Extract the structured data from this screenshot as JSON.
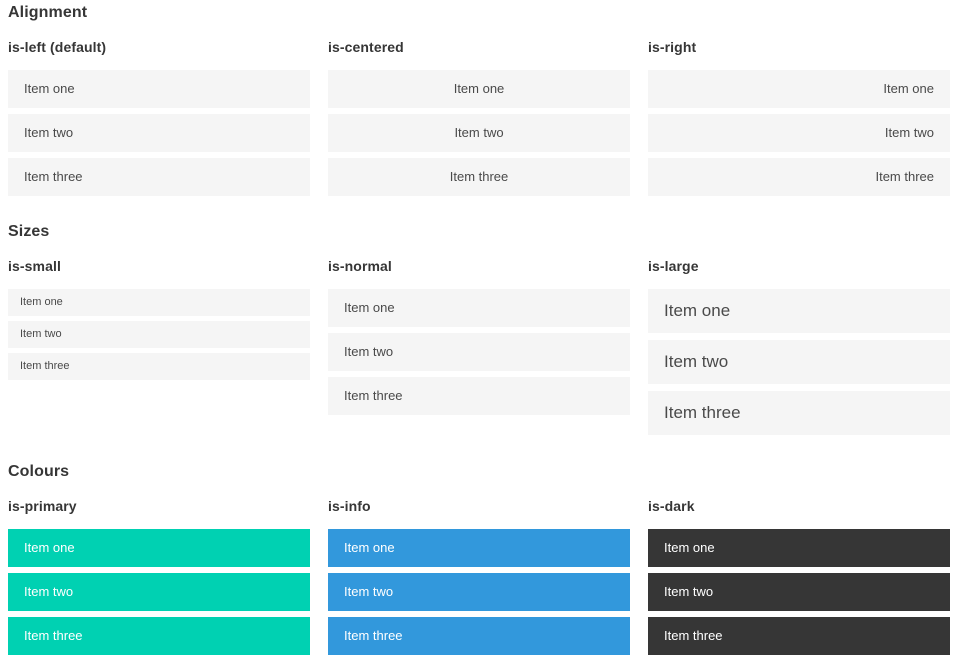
{
  "sections": [
    {
      "title": "Alignment",
      "columns": [
        {
          "subtitle": "is-left (default)",
          "modifier": "left",
          "items": [
            "Item one",
            "Item two",
            "Item three"
          ]
        },
        {
          "subtitle": "is-centered",
          "modifier": "centered",
          "items": [
            "Item one",
            "Item two",
            "Item three"
          ]
        },
        {
          "subtitle": "is-right",
          "modifier": "right",
          "items": [
            "Item one",
            "Item two",
            "Item three"
          ]
        }
      ]
    },
    {
      "title": "Sizes",
      "columns": [
        {
          "subtitle": "is-small",
          "modifier": "small",
          "items": [
            "Item one",
            "Item two",
            "Item three"
          ]
        },
        {
          "subtitle": "is-normal",
          "modifier": "normal",
          "items": [
            "Item one",
            "Item two",
            "Item three"
          ]
        },
        {
          "subtitle": "is-large",
          "modifier": "large",
          "items": [
            "Item one",
            "Item two",
            "Item three"
          ]
        }
      ]
    },
    {
      "title": "Colours",
      "columns": [
        {
          "subtitle": "is-primary",
          "modifier": "primary",
          "items": [
            "Item one",
            "Item two",
            "Item three"
          ]
        },
        {
          "subtitle": "is-info",
          "modifier": "info",
          "items": [
            "Item one",
            "Item two",
            "Item three"
          ]
        },
        {
          "subtitle": "is-dark",
          "modifier": "dark",
          "items": [
            "Item one",
            "Item two",
            "Item three"
          ]
        }
      ]
    }
  ],
  "colors": {
    "heading_text": "#363636",
    "item_background": "#f5f5f5",
    "item_text": "#4a4a4a",
    "primary": "#00d1b2",
    "info": "#3298dc",
    "dark": "#363636",
    "colour_item_text": "#ffffff"
  }
}
